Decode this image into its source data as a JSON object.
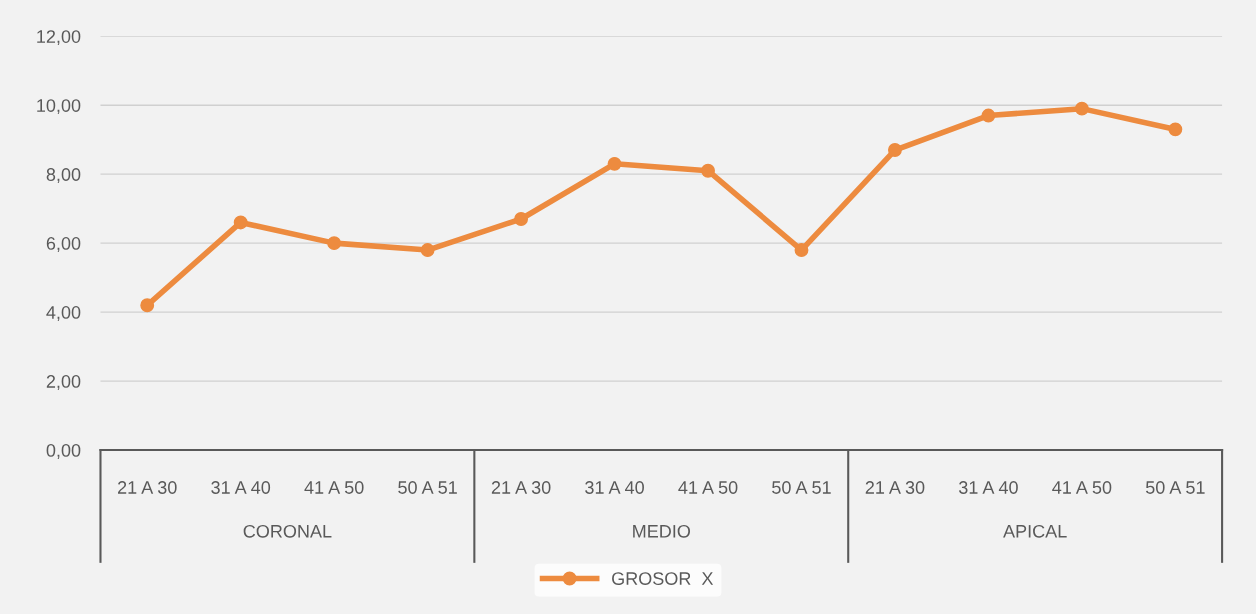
{
  "chart_data": {
    "type": "line",
    "categories": [
      "21 A 30",
      "31 A 40",
      "41 A 50",
      "50 A 51",
      "21 A 30",
      "31 A 40",
      "41 A 50",
      "50 A 51",
      "21 A 30",
      "31 A 40",
      "41 A 50",
      "50 A 51"
    ],
    "series": [
      {
        "name": "GROSOR  X",
        "color": "#ed8b3f",
        "values": [
          4.2,
          6.6,
          6.0,
          5.8,
          6.7,
          8.3,
          8.1,
          5.8,
          8.7,
          9.7,
          9.9,
          9.3
        ]
      }
    ],
    "annotations": [
      "CORONAL",
      "MEDIO",
      "APICAL"
    ],
    "ylim": [
      0,
      12
    ],
    "yticks": [
      {
        "value": 0,
        "label": "0,00"
      },
      {
        "value": 2,
        "label": "2,00"
      },
      {
        "value": 4,
        "label": "4,00"
      },
      {
        "value": 6,
        "label": "6,00"
      },
      {
        "value": 8,
        "label": "8,00"
      },
      {
        "value": 10,
        "label": "10,00"
      },
      {
        "value": 12,
        "label": "12,00"
      }
    ],
    "grid": "y",
    "legend": "bottom",
    "marker": "circle",
    "line_style": "solid"
  }
}
